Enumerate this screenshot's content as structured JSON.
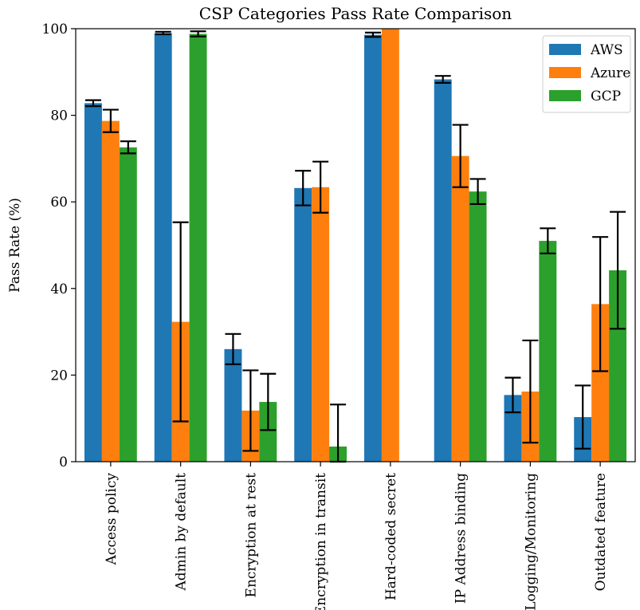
{
  "chart_data": {
    "type": "bar",
    "title": "CSP Categories Pass Rate Comparison",
    "xlabel": "",
    "ylabel": "Pass Rate (%)",
    "ylim": [
      0,
      100
    ],
    "yticks": [
      0,
      20,
      40,
      60,
      80,
      100
    ],
    "grid": false,
    "legend_position": "top-right",
    "categories": [
      "Access policy",
      "Admin by default",
      "Encryption at rest",
      "Encryption in transit",
      "Hard-coded secret",
      "IP Address binding",
      "Logging/Monitoring",
      "Outdated feature"
    ],
    "series": [
      {
        "name": "AWS",
        "color": "#1f77b4",
        "values": [
          82.8,
          99.0,
          26.0,
          63.2,
          98.6,
          88.3,
          15.4,
          10.3
        ],
        "errors": [
          0.7,
          0.3,
          3.5,
          4.0,
          0.5,
          0.8,
          4.0,
          7.3
        ]
      },
      {
        "name": "Azure",
        "color": "#ff7f0e",
        "values": [
          78.7,
          32.3,
          11.8,
          63.4,
          100.0,
          70.6,
          16.2,
          36.4
        ],
        "errors": [
          2.6,
          23.0,
          9.3,
          5.9,
          0.0,
          7.2,
          11.8,
          15.5
        ]
      },
      {
        "name": "GCP",
        "color": "#2ca02c",
        "values": [
          72.6,
          98.8,
          13.8,
          3.5,
          0.0,
          62.4,
          51.0,
          44.2
        ],
        "errors": [
          1.4,
          0.6,
          6.5,
          9.7,
          0.0,
          2.9,
          2.9,
          13.5
        ]
      }
    ]
  }
}
